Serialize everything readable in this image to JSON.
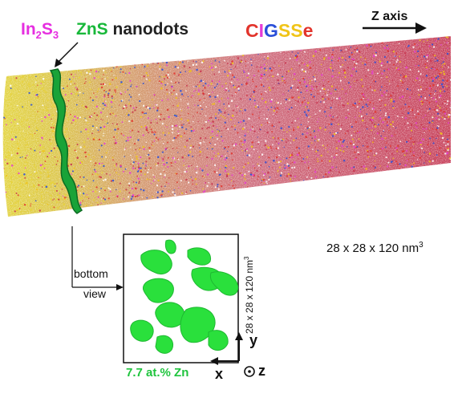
{
  "labels": {
    "in2s3": {
      "base_in": "In",
      "sub1": "2",
      "base_s": "S",
      "sub2": "3",
      "color": "#e62fe0"
    },
    "zns_prefix": "ZnS",
    "zns_suffix": " nanodots",
    "zns_color": "#18b83a",
    "cigsse": [
      {
        "ch": "C",
        "color": "#e2342c"
      },
      {
        "ch": "I",
        "color": "#e63cd6"
      },
      {
        "ch": "G",
        "color": "#2a4fd8"
      },
      {
        "ch": "S",
        "color": "#f0c418"
      },
      {
        "ch": "S",
        "color": "#f0c418"
      },
      {
        "ch": "e",
        "color": "#e2342c"
      }
    ],
    "z_axis": "Z axis",
    "dims_text": "28 x 28 x 120 nm",
    "dims_sup": "3",
    "bottom": "bottom",
    "view": "view",
    "zn_percent": "7.7 at.% Zn",
    "inset_dims_text": "28 x 28 x 120 nm",
    "inset_dims_sup": "3",
    "axis_x": "x",
    "axis_y": "y",
    "axis_z": "z"
  },
  "colors": {
    "ternary_yellow": "#e6d23c",
    "red_magenta": "#c8324e",
    "zns_green": "#19a338",
    "nanodot_green": "#2ae03c"
  }
}
